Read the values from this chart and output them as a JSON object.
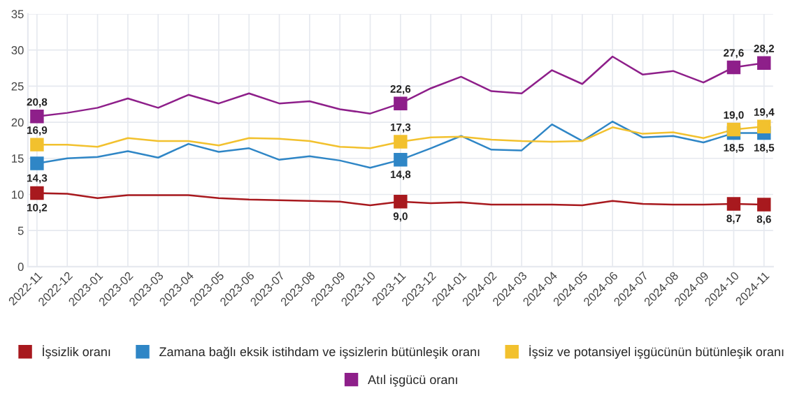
{
  "chart_data": {
    "type": "line",
    "categories": [
      "2022-11",
      "2022-12",
      "2023-01",
      "2023-02",
      "2023-03",
      "2023-04",
      "2023-05",
      "2023-06",
      "2023-07",
      "2023-08",
      "2023-09",
      "2023-10",
      "2023-11",
      "2023-12",
      "2024-01",
      "2024-02",
      "2024-03",
      "2024-04",
      "2024-05",
      "2024-06",
      "2024-07",
      "2024-08",
      "2024-09",
      "2024-10",
      "2024-11"
    ],
    "series": [
      {
        "name": "İşsizlik oranı",
        "color": "#a8191e",
        "values": [
          10.2,
          10.1,
          9.5,
          9.9,
          9.9,
          9.9,
          9.5,
          9.3,
          9.2,
          9.1,
          9.0,
          8.5,
          9.0,
          8.8,
          8.9,
          8.6,
          8.6,
          8.6,
          8.5,
          9.1,
          8.7,
          8.6,
          8.6,
          8.7,
          8.6
        ],
        "value_labels": [
          "10,2",
          null,
          null,
          null,
          null,
          null,
          null,
          null,
          null,
          null,
          null,
          null,
          "9,0",
          null,
          null,
          null,
          null,
          null,
          null,
          null,
          null,
          null,
          null,
          "8,7",
          "8,6"
        ]
      },
      {
        "name": "Zamana bağlı eksik istihdam ve işsizlerin bütünleşik oranı",
        "color": "#2f86c6",
        "values": [
          14.3,
          15.0,
          15.2,
          16.0,
          15.1,
          17.0,
          15.9,
          16.4,
          14.8,
          15.3,
          14.7,
          13.7,
          14.8,
          16.4,
          18.1,
          16.2,
          16.1,
          19.7,
          17.4,
          20.1,
          17.9,
          18.1,
          17.2,
          18.5,
          18.5
        ],
        "value_labels": [
          "14,3",
          null,
          null,
          null,
          null,
          null,
          null,
          null,
          null,
          null,
          null,
          null,
          "14,8",
          null,
          null,
          null,
          null,
          null,
          null,
          null,
          null,
          null,
          null,
          "18,5",
          "18,5"
        ]
      },
      {
        "name": "İşsiz ve potansiyel işgücünün bütünleşik oranı",
        "color": "#f2c12e",
        "values": [
          16.9,
          16.9,
          16.6,
          17.8,
          17.4,
          17.4,
          16.8,
          17.8,
          17.7,
          17.4,
          16.6,
          16.4,
          17.3,
          17.9,
          18.0,
          17.6,
          17.4,
          17.3,
          17.4,
          19.3,
          18.4,
          18.6,
          17.8,
          19.0,
          19.4
        ],
        "value_labels": [
          "16,9",
          null,
          null,
          null,
          null,
          null,
          null,
          null,
          null,
          null,
          null,
          null,
          "17,3",
          null,
          null,
          null,
          null,
          null,
          null,
          null,
          null,
          null,
          null,
          "19,0",
          "19,4"
        ]
      },
      {
        "name": "Atıl işgücü oranı",
        "color": "#8e1f8a",
        "values": [
          20.8,
          21.3,
          22.0,
          23.3,
          22.0,
          23.8,
          22.6,
          24.0,
          22.6,
          22.9,
          21.8,
          21.2,
          22.6,
          24.7,
          26.3,
          24.3,
          24.0,
          27.2,
          25.3,
          29.1,
          26.6,
          27.1,
          25.5,
          27.6,
          28.2
        ],
        "value_labels": [
          "20,8",
          null,
          null,
          null,
          null,
          null,
          null,
          null,
          null,
          null,
          null,
          null,
          "22,6",
          null,
          null,
          null,
          null,
          null,
          null,
          null,
          null,
          null,
          null,
          "27,6",
          "28,2"
        ]
      }
    ],
    "ylim": [
      0,
      35
    ],
    "yticks": [
      0,
      5,
      10,
      15,
      20,
      25,
      30,
      35
    ],
    "grid": true,
    "legend": "bottom"
  }
}
